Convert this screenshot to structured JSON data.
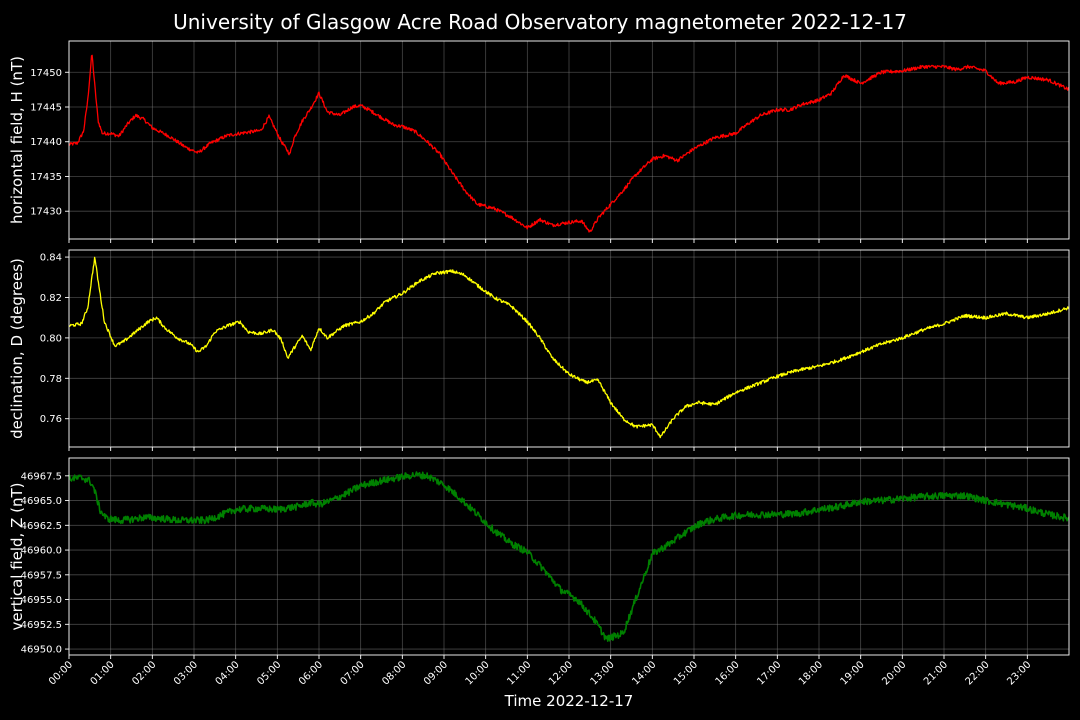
{
  "chart_data": {
    "type": "line",
    "title": "University of Glasgow Acre Road Observatory magnetometer 2022-12-17",
    "xlabel": "Time 2022-12-17",
    "x_ticks": [
      "00:00",
      "01:00",
      "02:00",
      "03:00",
      "04:00",
      "05:00",
      "06:00",
      "07:00",
      "08:00",
      "09:00",
      "10:00",
      "11:00",
      "12:00",
      "13:00",
      "14:00",
      "15:00",
      "16:00",
      "17:00",
      "18:00",
      "19:00",
      "20:00",
      "21:00",
      "22:00",
      "23:00"
    ],
    "xlim_hours": [
      0,
      24
    ],
    "grid": true,
    "panels": [
      {
        "name": "horizontal",
        "ylabel": "horizontal field, H (nT)",
        "color": "#ff0000",
        "ylim": [
          17426,
          17454.5
        ],
        "yticks": [
          17430,
          17435,
          17440,
          17445,
          17450
        ],
        "ytick_labels": [
          "17430",
          "17435",
          "17440",
          "17445",
          "17450"
        ],
        "noise": 0.25,
        "series": {
          "x": [
            0,
            0.2,
            0.35,
            0.45,
            0.55,
            0.62,
            0.7,
            0.8,
            1.0,
            1.2,
            1.4,
            1.6,
            1.8,
            2.0,
            2.4,
            2.8,
            3.1,
            3.4,
            3.8,
            4.2,
            4.6,
            4.8,
            5.1,
            5.3,
            5.4,
            5.6,
            5.8,
            6.0,
            6.2,
            6.5,
            6.8,
            7.0,
            7.2,
            7.5,
            7.8,
            8.0,
            8.3,
            8.6,
            8.9,
            9.2,
            9.5,
            9.8,
            10.2,
            10.6,
            11.0,
            11.3,
            11.6,
            12.0,
            12.3,
            12.5,
            12.7,
            13.0,
            13.3,
            13.6,
            14.0,
            14.3,
            14.6,
            15.0,
            15.5,
            16.0,
            16.3,
            16.6,
            17.0,
            17.3,
            17.6,
            18.0,
            18.3,
            18.6,
            19.0,
            19.5,
            20.0,
            20.5,
            21.0,
            21.3,
            21.6,
            22.0,
            22.3,
            22.7,
            23.0,
            23.5,
            24.0
          ],
          "y": [
            17439.6,
            17439.8,
            17441.5,
            17446,
            17452.8,
            17448,
            17443,
            17441.2,
            17441.2,
            17440.8,
            17442.5,
            17443.8,
            17443.2,
            17442,
            17440.8,
            17439.2,
            17438.4,
            17439.8,
            17440.9,
            17441.3,
            17441.6,
            17443.6,
            17440,
            17438.2,
            17440.5,
            17443,
            17444.8,
            17447,
            17444.3,
            17443.8,
            17445,
            17445.2,
            17444.6,
            17443.5,
            17442.4,
            17442.2,
            17441.5,
            17440,
            17438.2,
            17435.5,
            17433,
            17431,
            17430.4,
            17429.2,
            17427.6,
            17428.8,
            17428,
            17428.4,
            17428.6,
            17427,
            17429,
            17431,
            17433,
            17435.2,
            17437.5,
            17438,
            17437.3,
            17439,
            17440.6,
            17441.2,
            17442.6,
            17443.8,
            17444.6,
            17444.6,
            17445.4,
            17446,
            17447,
            17449.6,
            17448.4,
            17450,
            17450.2,
            17450.8,
            17450.8,
            17450.4,
            17450.8,
            17450.2,
            17448.4,
            17448.6,
            17449.3,
            17448.9,
            17447.5
          ]
        }
      },
      {
        "name": "declination",
        "ylabel": "declination, D (degrees)",
        "color": "#ffff00",
        "ylim": [
          0.746,
          0.8435
        ],
        "yticks": [
          0.76,
          0.78,
          0.8,
          0.82,
          0.84
        ],
        "ytick_labels": [
          "0.76",
          "0.78",
          "0.80",
          "0.82",
          "0.84"
        ],
        "noise": 0.0008,
        "series": {
          "x": [
            0,
            0.3,
            0.45,
            0.55,
            0.62,
            0.7,
            0.85,
            1.1,
            1.3,
            1.6,
            1.9,
            2.1,
            2.3,
            2.6,
            2.9,
            3.1,
            3.3,
            3.5,
            3.8,
            4.1,
            4.3,
            4.6,
            4.9,
            5.1,
            5.25,
            5.4,
            5.6,
            5.8,
            6.0,
            6.2,
            6.6,
            7.0,
            7.3,
            7.6,
            8.0,
            8.4,
            8.8,
            9.2,
            9.5,
            9.8,
            10.2,
            10.6,
            11.0,
            11.3,
            11.6,
            12.0,
            12.4,
            12.7,
            13.0,
            13.3,
            13.6,
            14.0,
            14.2,
            14.5,
            14.8,
            15.1,
            15.5,
            16.0,
            16.5,
            17.0,
            17.5,
            18.0,
            18.5,
            19.0,
            19.5,
            20.0,
            20.5,
            21.0,
            21.5,
            22.0,
            22.5,
            23.0,
            23.5,
            24.0
          ],
          "y": [
            0.806,
            0.807,
            0.815,
            0.83,
            0.84,
            0.828,
            0.808,
            0.796,
            0.798,
            0.803,
            0.808,
            0.81,
            0.805,
            0.8,
            0.797,
            0.793,
            0.796,
            0.803,
            0.806,
            0.808,
            0.803,
            0.802,
            0.804,
            0.799,
            0.79,
            0.795,
            0.801,
            0.794,
            0.805,
            0.8,
            0.806,
            0.808,
            0.812,
            0.818,
            0.822,
            0.828,
            0.832,
            0.833,
            0.831,
            0.826,
            0.82,
            0.816,
            0.808,
            0.8,
            0.79,
            0.782,
            0.778,
            0.779,
            0.768,
            0.76,
            0.756,
            0.757,
            0.751,
            0.76,
            0.766,
            0.768,
            0.767,
            0.773,
            0.777,
            0.781,
            0.784,
            0.786,
            0.789,
            0.793,
            0.797,
            0.8,
            0.804,
            0.807,
            0.811,
            0.81,
            0.812,
            0.81,
            0.812,
            0.815
          ]
        }
      },
      {
        "name": "vertical",
        "ylabel": "vertical field, Z (nT)",
        "color": "#008000",
        "ylim": [
          46949.4,
          46969.3
        ],
        "yticks": [
          46950,
          46952.5,
          46955,
          46957.5,
          46960,
          46962.5,
          46965,
          46967.5
        ],
        "ytick_labels": [
          "46950.0",
          "46952.5",
          "46955.0",
          "46957.5",
          "46960.0",
          "46962.5",
          "46965.0",
          "46967.5"
        ],
        "noise": 0.35,
        "series": {
          "x": [
            0,
            0.3,
            0.5,
            0.6,
            0.75,
            0.9,
            1.2,
            1.5,
            1.8,
            2.2,
            2.6,
            3.0,
            3.3,
            3.7,
            4.0,
            4.5,
            5.0,
            5.5,
            5.8,
            6.0,
            6.3,
            6.7,
            7.0,
            7.5,
            8.0,
            8.3,
            8.6,
            9.0,
            9.4,
            9.8,
            10.2,
            10.6,
            11.0,
            11.4,
            11.8,
            12.2,
            12.6,
            12.9,
            13.3,
            13.6,
            14.0,
            14.4,
            14.8,
            15.2,
            15.6,
            16.0,
            16.5,
            17.0,
            17.5,
            18.0,
            18.5,
            19.0,
            19.5,
            20.0,
            20.5,
            21.0,
            21.5,
            22.0,
            22.5,
            23.0,
            23.5,
            24.0
          ],
          "y": [
            46967.2,
            46967.3,
            46967,
            46966.2,
            46964,
            46963.2,
            46963,
            46963.1,
            46963.3,
            46963.2,
            46963,
            46963,
            46963,
            46963.6,
            46964.1,
            46964.2,
            46964.1,
            46964.4,
            46964.8,
            46964.6,
            46965,
            46965.8,
            46966.5,
            46967,
            46967.4,
            46967.6,
            46967.5,
            46966.6,
            46965.2,
            46963.6,
            46962,
            46960.7,
            46959.8,
            46958,
            46956,
            46955,
            46953,
            46951,
            46951.6,
            46955,
            46959.6,
            46960.6,
            46961.8,
            46962.8,
            46963.2,
            46963.5,
            46963.6,
            46963.6,
            46963.7,
            46964.1,
            46964.4,
            46964.9,
            46965,
            46965.2,
            46965.4,
            46965.5,
            46965.5,
            46965,
            46964.6,
            46964.2,
            46963.6,
            46963.2
          ]
        }
      }
    ]
  }
}
